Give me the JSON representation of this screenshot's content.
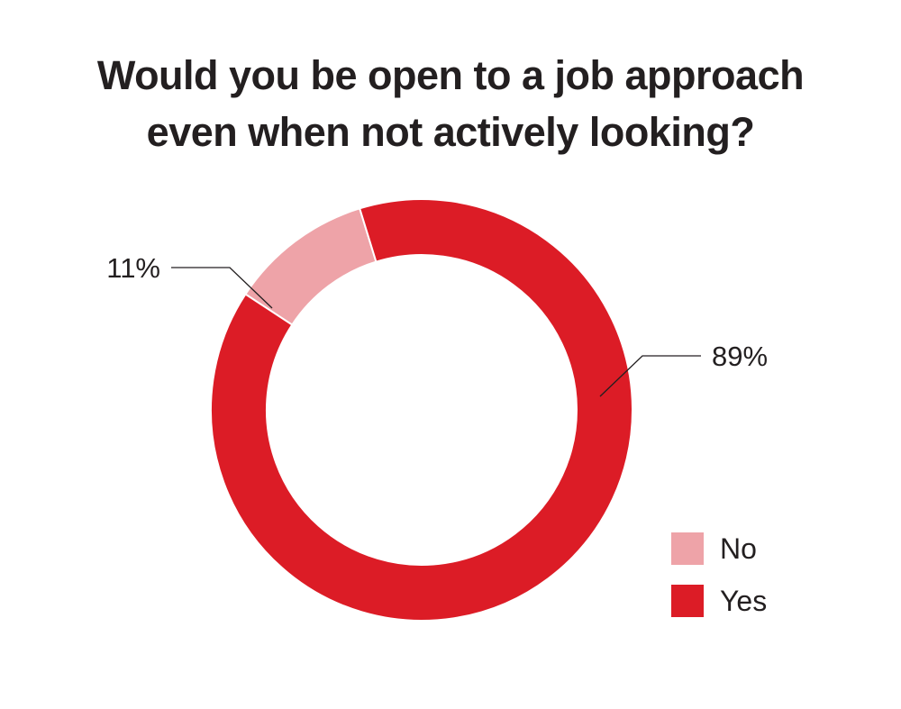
{
  "title_lines": [
    "Would you be open to a job approach",
    "even when not actively looking?"
  ],
  "chart_data": {
    "type": "pie",
    "variant": "donut",
    "title": "Would you be open to a job approach even when not actively looking?",
    "slices": [
      {
        "label": "No",
        "value": 11,
        "display": "11%",
        "color": "#eea3a8"
      },
      {
        "label": "Yes",
        "value": 89,
        "display": "89%",
        "color": "#dc1c26"
      }
    ],
    "legend_position": "bottom-right"
  }
}
